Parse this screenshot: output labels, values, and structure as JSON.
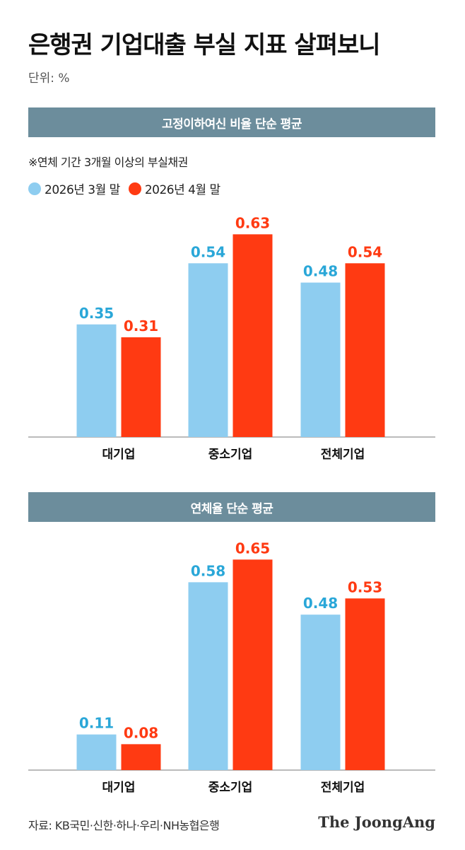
{
  "title": "은행권 기업대출 부실 지표 살펴보니",
  "unit": "단위: %",
  "note": "※연체 기간 3개월 이상의 부실채권",
  "colors": {
    "series1": "#8ecdf0",
    "series2": "#ff3a12",
    "series1_label": "#2aa7d8",
    "series2_label": "#ff3a12",
    "section_bar": "#6c8d9c"
  },
  "legend": [
    "2026년 3월 말",
    "2026년 4월 말"
  ],
  "chart_data": [
    {
      "type": "bar",
      "title": "고정이하여신 비율 단순 평균",
      "categories": [
        "대기업",
        "중소기업",
        "전체기업"
      ],
      "series": [
        {
          "name": "2026년 3월 말",
          "values": [
            0.35,
            0.54,
            0.48
          ]
        },
        {
          "name": "2026년 4월 말",
          "values": [
            0.31,
            0.63,
            0.54
          ]
        }
      ],
      "ylim": [
        0,
        0.7
      ]
    },
    {
      "type": "bar",
      "title": "연체율 단순 평균",
      "categories": [
        "대기업",
        "중소기업",
        "전체기업"
      ],
      "series": [
        {
          "name": "2026년 3월 말",
          "values": [
            0.11,
            0.58,
            0.48
          ]
        },
        {
          "name": "2026년 4월 말",
          "values": [
            0.08,
            0.65,
            0.53
          ]
        }
      ],
      "ylim": [
        0,
        0.7
      ]
    }
  ],
  "footer": {
    "source": "자료: KB국민·신한·하나·우리·NH농협은행",
    "brand": "The JoongAng"
  }
}
